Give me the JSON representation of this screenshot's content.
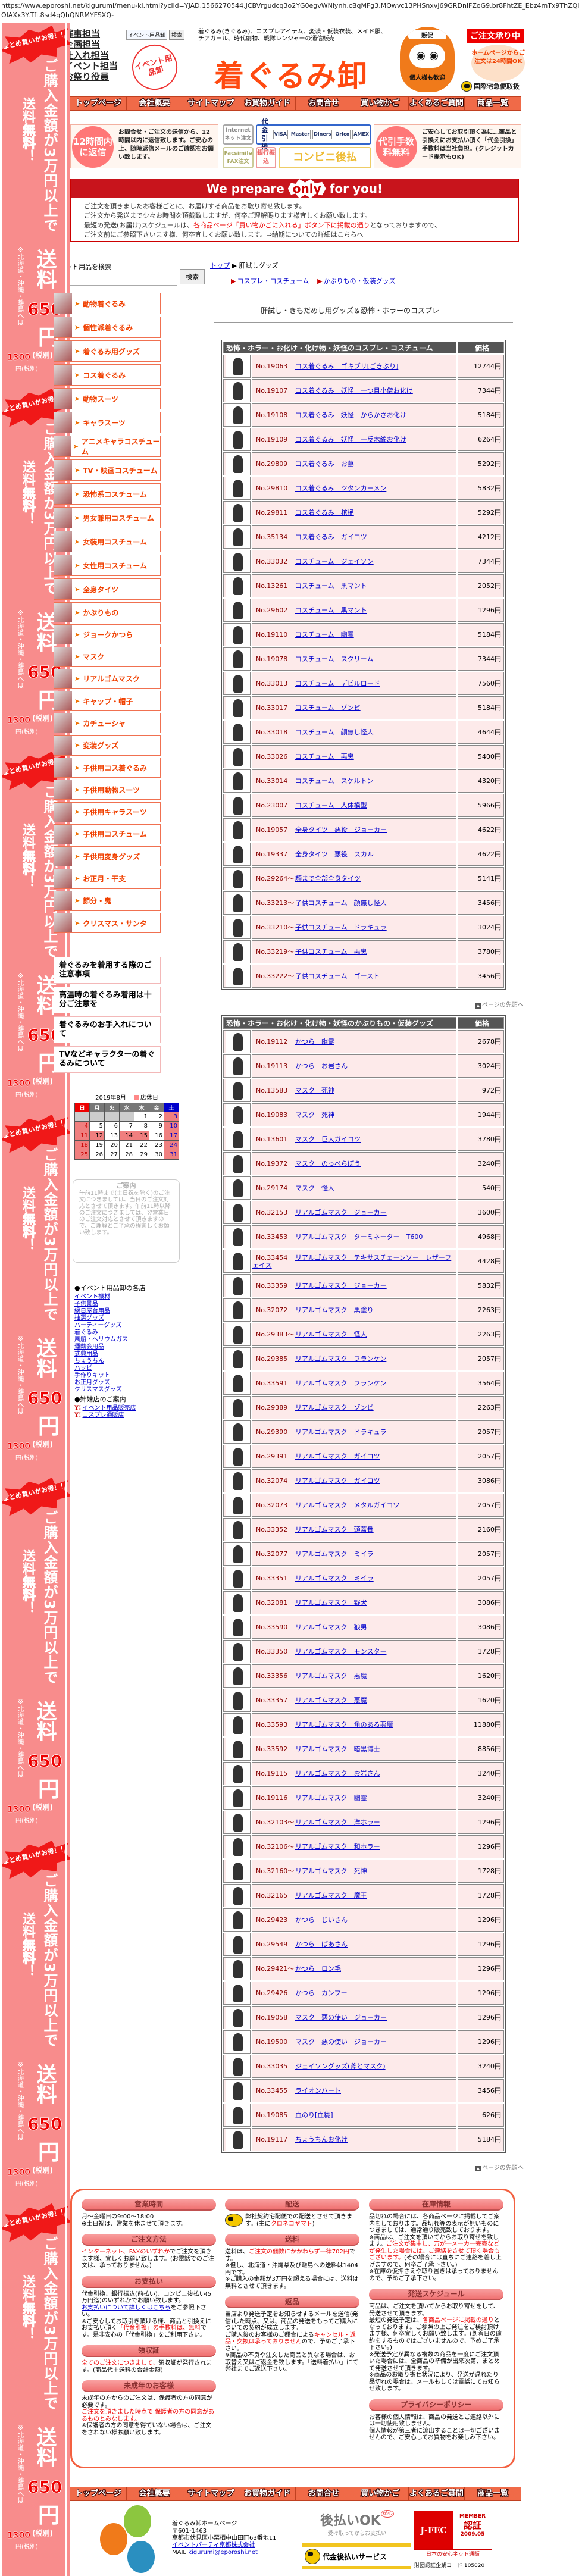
{
  "url": "https://www.eporoshi.net/kigurumi/menu-ki.html?yclid=YJAD.1566270544.JCBVrgudcq3o2YG0egvWNlynh.cBqMFg3.MOwvc13PHSnxvj69GRDniFZoG9.br8FhtZE_Ebz4mTx9ThZQIOIAXx3Y.Tfi.8sd4qQhQNRMYFSXQ-",
  "banner": {
    "bulk": "まとめ買いがお得！！",
    "threshold": "ご購入金額が3万円以上で",
    "free_pre": "送料",
    "free_red": "無料",
    "free_post": "！",
    "shipping": "送料",
    "price": "650",
    "yen": "円",
    "tax": "(税別)",
    "remote_note": "※北海道・沖縄・離島へは",
    "remote_price": "1300",
    "remote_yen": "円",
    "remote_tax": "(税別)"
  },
  "header": {
    "roles": [
      "催事担当",
      "企画担当",
      "仕入れ担当",
      "イベント担当",
      "お祭り役員"
    ],
    "mini_search_label": "イベント用品卸",
    "mini_search_button": "検索",
    "stamp": "イベント用品卸",
    "tagline": "着ぐるみ(きぐるみ)、コスプレアイテム、変装・仮装衣装、メイド服、チアガール、時代劇物、戦隊レンジャーの通信販売",
    "title": "着ぐるみ卸",
    "daruma_top": "販促",
    "daruma_bottom": "個人様も歓迎",
    "order_badge": "ご注文承り中",
    "order_circle": "ホームページからご注文は24時間OK",
    "intl": "国際宅急便取扱"
  },
  "nav": [
    "トップページ",
    "会社概要",
    "サイトマップ",
    "お買物ガイド",
    "お問合せ",
    "買い物かご",
    "よくあるご質問",
    "商品一覧"
  ],
  "info": {
    "reply_badge": "12時間内に返信",
    "reply_text": "お問合せ・ご注文の送信から、12時間以内に返信致します。ご安心の上、随時返信メールのご確認をお願い致します。",
    "internet": "Internet ネット注文",
    "cod": "代金引換",
    "cards": [
      "VISA",
      "Master",
      "Diners",
      "Orico",
      "AMEX"
    ],
    "fax": "Facsimile FAX注文",
    "bank": "銀行振込",
    "conveni": "コンビニ後払",
    "fee_badge": "代引手数料無料",
    "fee_text": "ご安心してお取引頂く為に…商品と引換えにお支払い頂く「代金引換」手数料は当社負担。(クレジットカード提示もOK)"
  },
  "prepare": {
    "pre": "We prepare",
    "only": "only",
    "post": "for you!",
    "line1": "ご注文を頂きましたお客様ごとに、お届けする商品をお取り寄せ致します。",
    "line2": "ご注文から発送まで少々お時間を頂戴致しますが、何卒ご理解賜ります様宜しくお願い致します。",
    "line3a": "最短の発送(お届け)スケジュールは、",
    "line3b": "各商品ページ「買い物かごに入れる」ボタン下に掲載の通り",
    "line3c": "となっておりますので、",
    "line4": "ご注文前にご参照下さいます様、何卒宜しくお願い致します。",
    "line4_link": "⇒納期についての詳細はこちらへ"
  },
  "search": {
    "label": "イベント用品を検索",
    "value": "",
    "button": "検索"
  },
  "breadcrumb": {
    "home": "トップ",
    "current": "肝試しグッズ",
    "sub": [
      "コスプレ・コスチューム",
      "かぶりもの・仮装グッズ"
    ]
  },
  "menu": [
    "動物着ぐるみ",
    "個性派着ぐるみ",
    "着ぐるみ用グッズ",
    "コス着ぐるみ",
    "動物スーツ",
    "キャラスーツ",
    "アニメキャラコスチューム",
    "TV・映画コスチューム",
    "恐怖系コスチューム",
    "男女兼用コスチューム",
    "女装用コスチューム",
    "女性用コスチューム",
    "全身タイツ",
    "かぶりもの",
    "ジョークかつら",
    "マスク",
    "リアルゴムマスク",
    "キャップ・帽子",
    "カチューシャ",
    "変装グッズ",
    "子供用コス着ぐるみ",
    "子供用動物スーツ",
    "子供用キャラスーツ",
    "子供用コスチューム",
    "子供用変身グッズ",
    "お正月・干支",
    "節分・鬼",
    "クリスマス・サンタ"
  ],
  "notices": [
    "着ぐるみを着用する際のご注意事項",
    "高温時の着ぐるみ着用は十分ご注意を",
    "着ぐるみのお手入れについて",
    "TVなどキャラクターの着ぐるみについて"
  ],
  "calendar": {
    "title": "2019年8月",
    "legend": "店休日",
    "weekdays": [
      "日",
      "月",
      "火",
      "水",
      "木",
      "金",
      "土"
    ],
    "weeks": [
      [
        "",
        "",
        "",
        "",
        "1",
        "2",
        "3"
      ],
      [
        "4",
        "5",
        "6",
        "7",
        "8",
        "9",
        "10"
      ],
      [
        "11",
        "12",
        "13",
        "14",
        "15",
        "16",
        "17"
      ],
      [
        "18",
        "19",
        "20",
        "21",
        "22",
        "23",
        "24"
      ],
      [
        "25",
        "26",
        "27",
        "28",
        "29",
        "30",
        "31"
      ]
    ],
    "closed": [
      3,
      4,
      10,
      11,
      12,
      14,
      15,
      17,
      18,
      24,
      25,
      31
    ]
  },
  "guide": {
    "title": "ご案内",
    "text": "午前11時まで(土日祝を除く)のご注文につきましては、当日のご注文対応とさせて頂きます。午前11時以降のご注文につきましては、翌営業日のご注文対応とさせて頂きますので、ご理解とご了承の程宜しくお願い致します。"
  },
  "stores": {
    "heading": "●イベント用品卸の各店",
    "links": [
      "イベント機材",
      "子供景品",
      "縁日屋台用品",
      "抽選グッズ",
      "パーティーグッズ",
      "着ぐるみ",
      "風船・ヘリウムガス",
      "運動会用品",
      "式典用品",
      "ちょうちん",
      "ハッピ",
      "手作りキット",
      "お正月グッズ",
      "クリスマスグッズ"
    ],
    "sister_heading": "●姉妹店のご案内",
    "sister_mark": "Y!",
    "sister_links": [
      "イベント用品販売店",
      "コスプレ通販店"
    ]
  },
  "page_title": "肝試し・きもだめし用グッズ＆恐怖・ホラーのコスプレ",
  "to_top": "ページの先頭へ",
  "tables": [
    {
      "heading": "恐怖・ホラー・お化け・化け物・妖怪のコスプレ・コスチューム",
      "price_heading": "価格",
      "rows": [
        [
          "No.19063",
          "コス着ぐるみ　ゴキブリ[ごきぶり]",
          "12744円"
        ],
        [
          "No.19107",
          "コス着ぐるみ　妖怪　一つ目小僧お化け",
          "7344円"
        ],
        [
          "No.19108",
          "コス着ぐるみ　妖怪　からかさお化け",
          "5184円"
        ],
        [
          "No.19109",
          "コス着ぐるみ　妖怪　一反木綿お化け",
          "6264円"
        ],
        [
          "No.29809",
          "コス着ぐるみ　お墓",
          "5292円"
        ],
        [
          "No.29810",
          "コス着ぐるみ　ツタンカーメン",
          "5832円"
        ],
        [
          "No.29811",
          "コス着ぐるみ　棺桶",
          "5292円"
        ],
        [
          "No.35134",
          "コス着ぐるみ　ガイコツ",
          "4212円"
        ],
        [
          "No.33032",
          "コスチューム　ジェイソン",
          "7344円"
        ],
        [
          "No.13261",
          "コスチューム　黒マント",
          "2052円"
        ],
        [
          "No.29602",
          "コスチューム　黒マント",
          "1296円"
        ],
        [
          "No.19110",
          "コスチューム　幽霊",
          "5184円"
        ],
        [
          "No.19078",
          "コスチューム　スクリーム",
          "7344円"
        ],
        [
          "No.33013",
          "コスチューム　デビルロード",
          "7560円"
        ],
        [
          "No.33017",
          "コスチューム　ゾンビ",
          "5184円"
        ],
        [
          "No.33018",
          "コスチューム　顔無し怪人",
          "4644円"
        ],
        [
          "No.33026",
          "コスチューム　悪鬼",
          "5400円"
        ],
        [
          "No.33014",
          "コスチューム　スケルトン",
          "4320円"
        ],
        [
          "No.23007",
          "コスチューム　人体模型",
          "5966円"
        ],
        [
          "No.19057",
          "全身タイツ　悪役　ジョーカー",
          "4622円"
        ],
        [
          "No.19337",
          "全身タイツ　悪役　スカル",
          "4622円"
        ],
        [
          "No.29264～",
          "顔まで全部全身タイツ",
          "5141円"
        ],
        [
          "No.33213～",
          "子供コスチューム　顔無し怪人",
          "3456円"
        ],
        [
          "No.33210～",
          "子供コスチューム　ドラキュラ",
          "3024円"
        ],
        [
          "No.33219～",
          "子供コスチューム　悪鬼",
          "3780円"
        ],
        [
          "No.33222～",
          "子供コスチューム　ゴースト",
          "3456円"
        ]
      ]
    },
    {
      "heading": "恐怖・ホラー・お化け・化け物・妖怪のかぶりもの・仮装グッズ",
      "price_heading": "価格",
      "rows": [
        [
          "No.19112",
          "かつら　幽霊",
          "2678円"
        ],
        [
          "No.19113",
          "かつら　お岩さん",
          "3024円"
        ],
        [
          "No.13583",
          "マスク　死神",
          "972円"
        ],
        [
          "No.19083",
          "マスク　死神",
          "1944円"
        ],
        [
          "No.13601",
          "マスク　巨大ガイコツ",
          "3780円"
        ],
        [
          "No.19372",
          "マスク　のっぺらぼう",
          "3240円"
        ],
        [
          "No.29174",
          "マスク　怪人",
          "540円"
        ],
        [
          "No.32153",
          "リアルゴムマスク　ジョーカー",
          "3600円"
        ],
        [
          "No.33453",
          "リアルゴムマスク　ターミネーター　T600",
          "4968円"
        ],
        [
          "No.33454",
          "リアルゴムマスク　テキサスチェーンソー　レザーフェイス",
          "4428円"
        ],
        [
          "No.33359",
          "リアルゴムマスク　ジョーカー",
          "5832円"
        ],
        [
          "No.32072",
          "リアルゴムマスク　黒塗り",
          "2263円"
        ],
        [
          "No.29383～",
          "リアルゴムマスク　怪人",
          "2263円"
        ],
        [
          "No.29385",
          "リアルゴムマスク　フランケン",
          "2057円"
        ],
        [
          "No.33591",
          "リアルゴムマスク　フランケン",
          "3564円"
        ],
        [
          "No.29389",
          "リアルゴムマスク　ゾンビ",
          "2263円"
        ],
        [
          "No.29390",
          "リアルゴムマスク　ドラキュラ",
          "2057円"
        ],
        [
          "No.29391",
          "リアルゴムマスク　ガイコツ",
          "2057円"
        ],
        [
          "No.32074",
          "リアルゴムマスク　ガイコツ",
          "3086円"
        ],
        [
          "No.32073",
          "リアルゴムマスク　メタルガイコツ",
          "2057円"
        ],
        [
          "No.33352",
          "リアルゴムマスク　頭蓋骨",
          "2160円"
        ],
        [
          "No.32077",
          "リアルゴムマスク　ミイラ",
          "2057円"
        ],
        [
          "No.33351",
          "リアルゴムマスク　ミイラ",
          "2057円"
        ],
        [
          "No.32081",
          "リアルゴムマスク　野犬",
          "3086円"
        ],
        [
          "No.33590",
          "リアルゴムマスク　狼男",
          "3086円"
        ],
        [
          "No.33350",
          "リアルゴムマスク　モンスター",
          "1728円"
        ],
        [
          "No.33356",
          "リアルゴムマスク　悪魔",
          "1620円"
        ],
        [
          "No.33357",
          "リアルゴムマスク　悪魔",
          "1620円"
        ],
        [
          "No.33593",
          "リアルゴムマスク　角のある悪魔",
          "11880円"
        ],
        [
          "No.33592",
          "リアルゴムマスク　暗黒博士",
          "8856円"
        ],
        [
          "No.19115",
          "リアルゴムマスク　お岩さん",
          "3240円"
        ],
        [
          "No.19116",
          "リアルゴムマスク　幽霊",
          "3240円"
        ],
        [
          "No.32103～",
          "リアルゴムマスク　洋ホラー",
          "1296円"
        ],
        [
          "No.32106～",
          "リアルゴムマスク　和ホラー",
          "1296円"
        ],
        [
          "No.32160～",
          "リアルゴムマスク　死神",
          "1728円"
        ],
        [
          "No.32165",
          "リアルゴムマスク　魔王",
          "1728円"
        ],
        [
          "No.29423",
          "かつら　じいさん",
          "1296円"
        ],
        [
          "No.29549",
          "かつら　ばあさん",
          "1296円"
        ],
        [
          "No.29421～",
          "かつら　ロン毛",
          "1296円"
        ],
        [
          "No.29426",
          "かつら　カンフー",
          "1296円"
        ],
        [
          "No.19058",
          "マスク　悪の使い　ジョーカー",
          "1296円"
        ],
        [
          "No.19500",
          "マスク　悪の使い　ジョーカー",
          "1296円"
        ],
        [
          "No.33035",
          "ジェイソングッズ(斧とマスク)",
          "3240円"
        ],
        [
          "No.33455",
          "ライオンハート",
          "3456円"
        ],
        [
          "No.19085",
          "血のり[血糊]",
          "626円"
        ],
        [
          "No.19117",
          "ちょうちんお化け",
          "5184円"
        ]
      ]
    }
  ],
  "footer_info": [
    [
      {
        "title": "営業時間",
        "body": [
          {
            "t": "月～金曜日の9:00～18:00\n※土日祝は、営業を休ませて頂きます。"
          }
        ]
      },
      {
        "title": "ご注文方法",
        "body": [
          {
            "t": "インターネット、FAXのいずれか",
            "s": "red"
          },
          {
            "t": "でご注文を頂きます様、宜しくお願い致します。(お電話でのご注文は、承っておりません。)"
          }
        ]
      },
      {
        "title": "お支払い",
        "body": [
          {
            "t": "代金引換、銀行振込(前払い)、コンビニ後払い(5万円迄)のいずれかでお願い致します。\n"
          },
          {
            "t": "お支払いについて詳しくはこちら",
            "s": "link"
          },
          {
            "t": "をご参照下さい。\n※ご安心してお取引き頂ける様、商品と引換えにお支払い頂く"
          },
          {
            "t": "「代金引換」の手数料は、無料",
            "s": "red"
          },
          {
            "t": "です。是非安心の「代金引換」をご利用下さい。"
          }
        ]
      },
      {
        "title": "領収証",
        "body": [
          {
            "t": "全てのご注文につきまして、",
            "s": "red"
          },
          {
            "t": "領収証が発行されます。(商品代＋送料の合計金額)"
          }
        ]
      },
      {
        "title": "未成年のお客様",
        "body": [
          {
            "t": "未成年の方からのご注文は、保護者の方の同意が必要です。\n"
          },
          {
            "t": "ご注文を頂きました時点で 保護者の方の同意があるものとみなします。",
            "s": "red"
          },
          {
            "t": "\n※保護者の方の同意を得ていない場合は、ご注文をされない様お願い致します。"
          }
        ]
      }
    ],
    [
      {
        "title": "配送",
        "body": [
          {
            "t": "弊社契約宅配便での配送とさせて頂きます。(主に"
          },
          {
            "t": "クロネコヤマト",
            "s": "red"
          },
          {
            "t": ")"
          }
        ]
      },
      {
        "title": "送料",
        "body": [
          {
            "t": "送料は、"
          },
          {
            "t": "ご注文の個数にかかわらず一律702円",
            "s": "red"
          },
          {
            "t": "です。\n※但し、北海道・沖縄県及び離島への送料は1404円です。\n※ご購入の金額が3万円を超える場合には、送料は無料とさせて頂きます。"
          }
        ]
      },
      {
        "title": "返品",
        "body": [
          {
            "t": "当店より発送予定をお知らせするメールを送信(発信)した時点、又は、商品の発送をもってご購入についての契約が成立します。\nご購入後のお客様のご都合による"
          },
          {
            "t": "キャンセル・返品・交換は承っておりません",
            "s": "red"
          },
          {
            "t": "ので、予めご了承下さい。\n※商品の不良や注文した商品と異なる場合は、お取替え又はご返金を致します。「送料着払い」にて弊社までご返送下さい。"
          }
        ]
      }
    ],
    [
      {
        "title": "在庫情報",
        "body": [
          {
            "t": "品切れの場合には、各商品ページに掲載してご案内をしております。品切れ等の表示が無いものにつきましては、通常通り販売致しております。\n※商品は、ご注文を頂いてからお取り寄せを致します。"
          },
          {
            "t": "ご注文が集中し、万が一メーカー完売などが発生した場合には、ご連絡をさせて頂く場合もございます。",
            "s": "red"
          },
          {
            "t": "(その場合には直ちにご連絡を差し上げますので、何卒ご了承下さい。)\n※在庫の仮押さえや取り置きは承っておりませんので、予めご了承下さい。"
          }
        ]
      },
      {
        "title": "発送スケジュール",
        "body": [
          {
            "t": "商品は、ご注文を頂いてからお取り寄せをして、発送させて頂きます。\n最短の発送予定は、"
          },
          {
            "t": "各商品ページに掲載の通り",
            "s": "red"
          },
          {
            "t": "となっております。ご参照の上ご発注をご検討頂けます様、何卒宜しくお願い致します。(到着日の確約をするものではございませんので、予めご了承下さい。)\n※発送予定が異なる複数の商品を一度にご注文頂いた場合には、全商品の準備が出来次第、まとめて発送させて頂きます。\n※商品のお取り寄せ状況により、発送が遅れたり品切れの場合は、メールもしくは電話にてお知らせ致します。"
          }
        ]
      },
      {
        "title": "プライバシーポリシー",
        "body": [
          {
            "t": "お客様の個人情報は、商品の発送とご連絡以外には一切使用致しません。\n個人情報が第三者に流出することは一切ございませんので、ご安心してお買物をお楽しみ下さい。"
          }
        ]
      }
    ]
  ],
  "footer": {
    "site": "着ぐるみ卸ホームページ",
    "zip": "〒601-1463",
    "address": "京都市伏見区小栗栖中山田町63番地11",
    "company": "イベントパーティ京都株式会社",
    "mail_label": "MAIL",
    "mail": "kigurumi@eporoshi.net",
    "atobarai": "後払いOK",
    "anshin": "安心",
    "atobarai_sub": "受け取ってからお支払い",
    "yamato": "代金後払いサービス",
    "jfec": "J-FEC",
    "jfec_member": "MEMBER",
    "jfec_cert": "認証",
    "jfec_date": "2009.05",
    "jfec_bottom": "日本の安心ネット通販",
    "jfec_code": "財団認証企業コード 105020"
  },
  "colors": {
    "accent": "#f06a48",
    "brand": "#ff4a10",
    "banner": "#f88c8c",
    "link": "#0000cc",
    "table_row": "#fdeaea",
    "table_head": "#555555"
  }
}
